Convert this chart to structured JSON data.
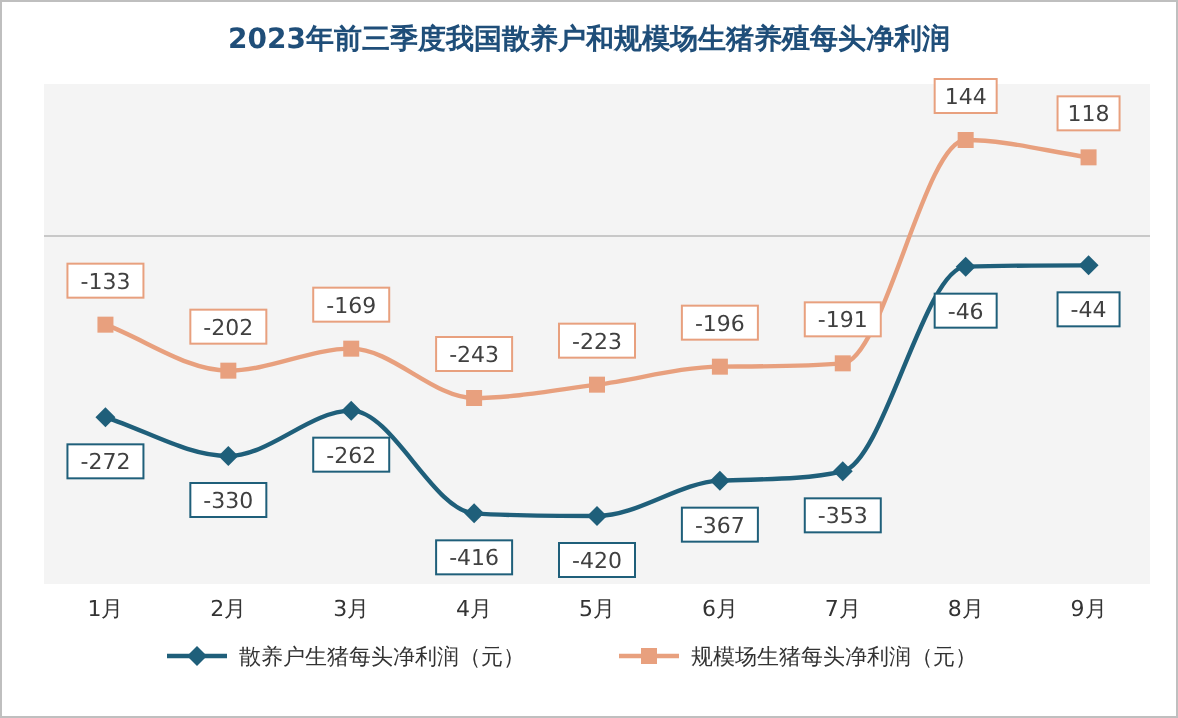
{
  "chart_data": {
    "type": "line",
    "title": "2023年前三季度我国散养户和规模场生猪养殖每头净利润",
    "categories": [
      "1月",
      "2月",
      "3月",
      "4月",
      "5月",
      "6月",
      "7月",
      "8月",
      "9月"
    ],
    "series": [
      {
        "name": "散养户生猪每头净利润（元）",
        "color": "#1f5f7a",
        "marker": "diamond",
        "values": [
          -272,
          -330,
          -262,
          -416,
          -420,
          -367,
          -353,
          -46,
          -44
        ]
      },
      {
        "name": "规模场生猪每头净利润（元）",
        "color": "#e8a07e",
        "marker": "square",
        "values": [
          -133,
          -202,
          -169,
          -243,
          -223,
          -196,
          -191,
          144,
          118
        ]
      }
    ],
    "data_labels": true,
    "legend": "bottom",
    "grid": false
  }
}
